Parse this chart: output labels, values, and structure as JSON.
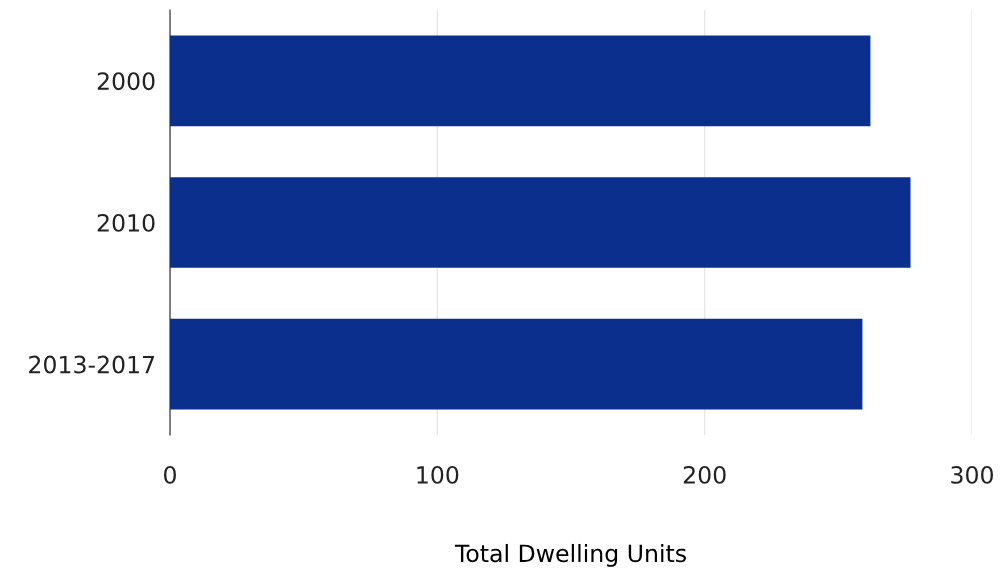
{
  "chart_data": {
    "type": "bar",
    "orientation": "horizontal",
    "xlabel": "Total Dwelling Units",
    "categories": [
      "2000",
      "2010",
      "2013-2017"
    ],
    "values": [
      262,
      277,
      259
    ],
    "color": "#0b2f8c",
    "xlim": [
      0,
      300
    ],
    "xticks": [
      0,
      100,
      200,
      300
    ],
    "grid": "x",
    "legend": false
  }
}
